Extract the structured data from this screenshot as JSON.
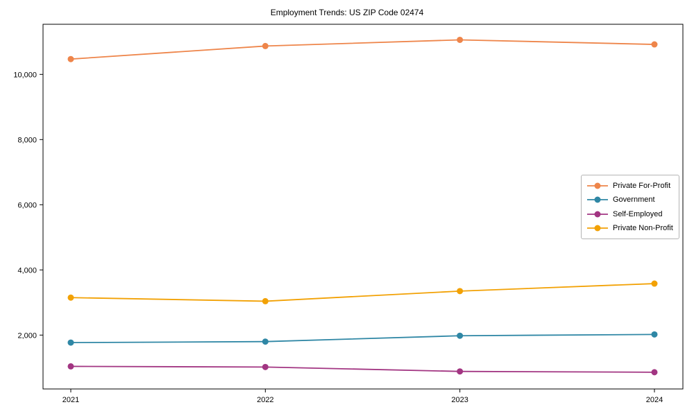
{
  "chart_data": {
    "type": "line",
    "title": "Employment Trends: US ZIP Code 02474",
    "x": [
      2021,
      2022,
      2023,
      2024
    ],
    "x_tick_labels": [
      "2021",
      "2022",
      "2023",
      "2024"
    ],
    "y_ticks": [
      2000,
      4000,
      6000,
      8000,
      10000
    ],
    "y_tick_labels": [
      "2,000",
      "4,000",
      "6,000",
      "8,000",
      "10,000"
    ],
    "ylim": [
      350,
      11550
    ],
    "xlabel": "",
    "ylabel": "",
    "grid": false,
    "legend_position": "center-right",
    "series": [
      {
        "name": "Private For-Profit",
        "color": "#ee854a",
        "values": [
          10470,
          10870,
          11060,
          10920
        ]
      },
      {
        "name": "Government",
        "color": "#2f87a5",
        "values": [
          1770,
          1800,
          1980,
          2020
        ]
      },
      {
        "name": "Self-Employed",
        "color": "#a23582",
        "values": [
          1040,
          1020,
          885,
          860
        ]
      },
      {
        "name": "Private Non-Profit",
        "color": "#f2a104",
        "values": [
          3150,
          3040,
          3350,
          3580
        ]
      }
    ]
  }
}
